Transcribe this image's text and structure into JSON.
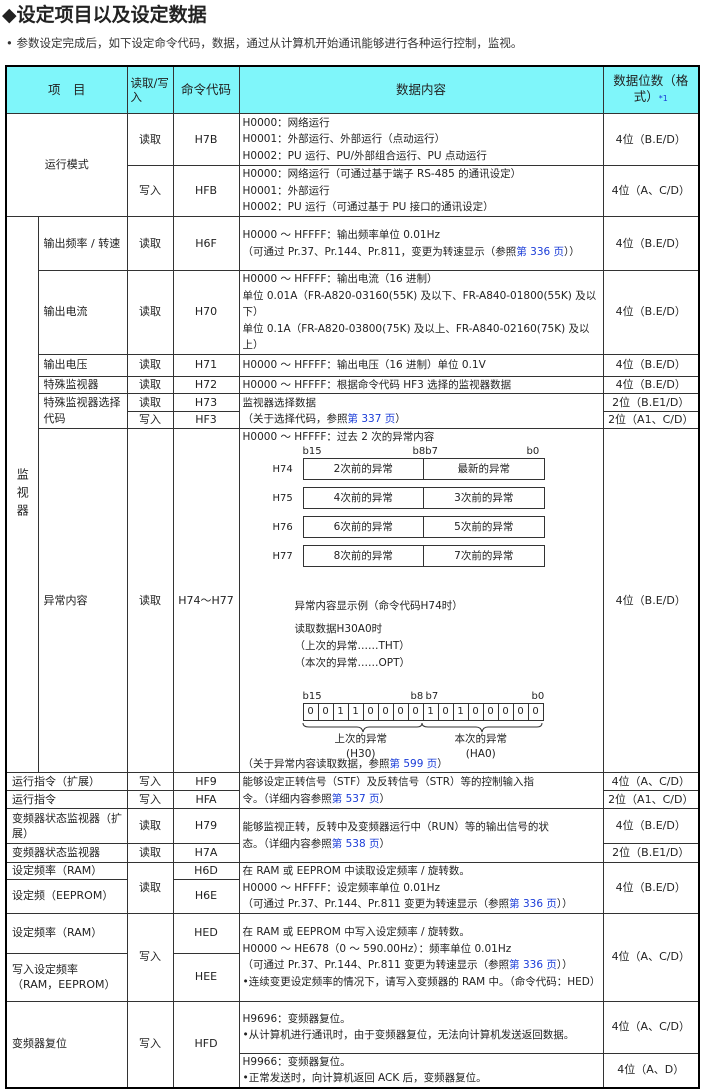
{
  "title": "◆设定项目以及设定数据",
  "intro": "• 参数设定完成后，如下设定命令代码，数据，通过从计算机开始通讯能够进行各种运行控制，监视。",
  "header": {
    "item": "项　目",
    "rw": "读取/写入",
    "code": "命令代码",
    "content": "数据内容",
    "digits": "数据位数（格式）",
    "note": "*1"
  },
  "rows": {
    "mode": {
      "item": "运行模式",
      "r_rw": "读取",
      "r_code": "H7B",
      "r_content": [
        "H0000：网络运行",
        "H0001：外部运行、外部运行（点动运行）",
        "H0002：PU 运行、PU/外部组合运行、PU 点动运行"
      ],
      "r_digits": "4位（B.E/D）",
      "w_rw": "写入",
      "w_code": "HFB",
      "w_content": [
        "H0000：网络运行（可通过基于端子 RS-485 的通讯设定）",
        "H0001：外部运行",
        "H0002：PU 运行（可通过基于 PU 接口的通讯设定）"
      ],
      "w_digits": "4位（A、C/D）"
    },
    "monitor": "监视器",
    "freq": {
      "item": "输出频率 / 转速",
      "rw": "读取",
      "code": "H6F",
      "content": [
        "H0000 ～ HFFFF：输出频率单位 0.01Hz",
        [
          "（可通过 Pr.37、Pr.144、Pr.811，变更为转速显示（参照",
          {
            "link": "第 336 页"
          },
          "））"
        ]
      ],
      "digits": "4位（B.E/D）"
    },
    "current": {
      "item": "输出电流",
      "rw": "读取",
      "code": "H70",
      "content": [
        "H0000 ～ HFFFF：输出电流（16 进制）",
        "单位 0.01A（FR-A820-03160(55K) 及以下、FR-A840-01800(55K) 及以下）",
        "单位 0.1A（FR-A820-03800(75K) 及以上、FR-A840-02160(75K) 及以上）"
      ],
      "digits": "4位（B.E/D）"
    },
    "voltage": {
      "item": "输出电压",
      "rw": "读取",
      "code": "H71",
      "content": [
        "H0000 ～ HFFFF：输出电压（16 进制）单位 0.1V"
      ],
      "digits": "4位（B.E/D）"
    },
    "special": {
      "item": "特殊监视器",
      "rw": "读取",
      "code": "H72",
      "content": [
        "H0000 ～ HFFFF：根据命令代码 HF3 选择的监视器数据"
      ],
      "digits": "4位（B.E/D）"
    },
    "select": {
      "item": "特殊监视器选择代码",
      "r_rw": "读取",
      "r_code": "H73",
      "r_digits": "2位（B.E1/D）",
      "w_rw": "写入",
      "w_code": "HF3",
      "w_digits": "2位（A1、C/D）",
      "content": [
        "监视器选择数据",
        [
          "（关于选择代码，参照",
          {
            "link": "第 337 页"
          },
          "）"
        ]
      ]
    },
    "fault": {
      "item": "异常内容",
      "rw": "读取",
      "code": "H74～H77",
      "digits": "4位（B.E/D）",
      "head": "H0000 ～ HFFFF：过去 2 次的异常内容",
      "bit_labels": [
        "b15",
        "b8b7",
        "b0"
      ],
      "regs": [
        {
          "code": "H74",
          "hi": "2次前的异常",
          "lo": "最新的异常"
        },
        {
          "code": "H75",
          "hi": "4次前的异常",
          "lo": "3次前的异常"
        },
        {
          "code": "H76",
          "hi": "6次前的异常",
          "lo": "5次前的异常"
        },
        {
          "code": "H77",
          "hi": "8次前的异常",
          "lo": "7次前的异常"
        }
      ],
      "example_title": "异常内容显示例（命令代码H74时）",
      "example_read": "读取数据H30A0时",
      "example_prev": "（上次的异常……THT）",
      "example_curr": "（本次的异常……OPT）",
      "bits_b15": "b15",
      "bits_b8": "b8",
      "bits_b7": "b7",
      "bits_b0": "b0",
      "bits": [
        "0",
        "0",
        "1",
        "1",
        "0",
        "0",
        "0",
        "0",
        "1",
        "0",
        "1",
        "0",
        "0",
        "0",
        "0",
        "0"
      ],
      "prev_label": "上次的异常",
      "prev_code": "(H30)",
      "curr_label": "本次的异常",
      "curr_code": "(HA0)",
      "footer": [
        "（关于异常内容读取数据，参照",
        {
          "link": "第 599 页"
        },
        "）"
      ]
    },
    "runext": {
      "item": "运行指令（扩展）",
      "rw": "写入",
      "code": "HF9",
      "digits": "4位（A、C/D）",
      "content": [
        "能够设定正转信号（STF）及反转信号（STR）等的控制输入指",
        [
          "令。（详细内容参照",
          {
            "link": "第 537 页"
          },
          "）"
        ]
      ]
    },
    "run": {
      "item": "运行指令",
      "rw": "写入",
      "code": "HFA",
      "digits": "2位（A1、C/D）"
    },
    "statext": {
      "item": "变频器状态监视器（扩展）",
      "rw": "读取",
      "code": "H79",
      "digits": "4位（B.E/D）",
      "content": [
        "能够监视正转，反转中及变频器运行中（RUN）等的输出信号的状",
        [
          "态。（详细内容参照",
          {
            "link": "第 538 页"
          },
          "）"
        ]
      ]
    },
    "stat": {
      "item": "变频器状态监视器",
      "rw": "读取",
      "code": "H7A",
      "digits": "2位（B.E1/D）"
    },
    "setr": {
      "item1": "设定频率（RAM）",
      "item2": "设定频（EEPROM）",
      "rw": "读取",
      "code1": "H6D",
      "code2": "H6E",
      "digits": "4位（B.E/D）",
      "content": [
        "在 RAM 或 EEPROM 中读取设定频率 / 旋转数。",
        "H0000 ～ HFFFF：设定频率单位 0.01Hz",
        [
          "（可通过 Pr.37、Pr.144、Pr.811 变更为转速显示（参照",
          {
            "link": "第 336 页"
          },
          "））"
        ]
      ]
    },
    "setw": {
      "item1": "设定频率（RAM）",
      "item2": "写入设定频率（RAM，EEPROM）",
      "rw": "写入",
      "code1": "HED",
      "code2": "HEE",
      "digits": "4位（A、C/D）",
      "content": [
        "在 RAM 或 EEPROM 中写入设定频率 / 旋转数。",
        "H0000 ～ HE678（0 ～ 590.00Hz）：频率单位 0.01Hz",
        [
          "（可通过 Pr.37、Pr.144、Pr.811 变更为转速显示（参照",
          {
            "link": "第 336 页"
          },
          "））"
        ],
        "•连续变更设定频率的情况下，请写入变频器的 RAM 中。（命令代码：HED）"
      ]
    },
    "reset": {
      "item": "变频器复位",
      "rw": "写入",
      "code": "HFD",
      "content1": [
        "H9696：变频器复位。",
        "•从计算机进行通讯时，由于变频器复位，无法向计算机发送返回数据。"
      ],
      "digits1": "4位（A、C/D）",
      "content2": [
        "H9966：变频器复位。",
        "•正常发送时，向计算机返回 ACK 后，变频器复位。"
      ],
      "digits2": "4位（A、D）"
    }
  },
  "colors": {
    "header_bg": "#7ff6fa",
    "link": "#1a3cd8"
  }
}
